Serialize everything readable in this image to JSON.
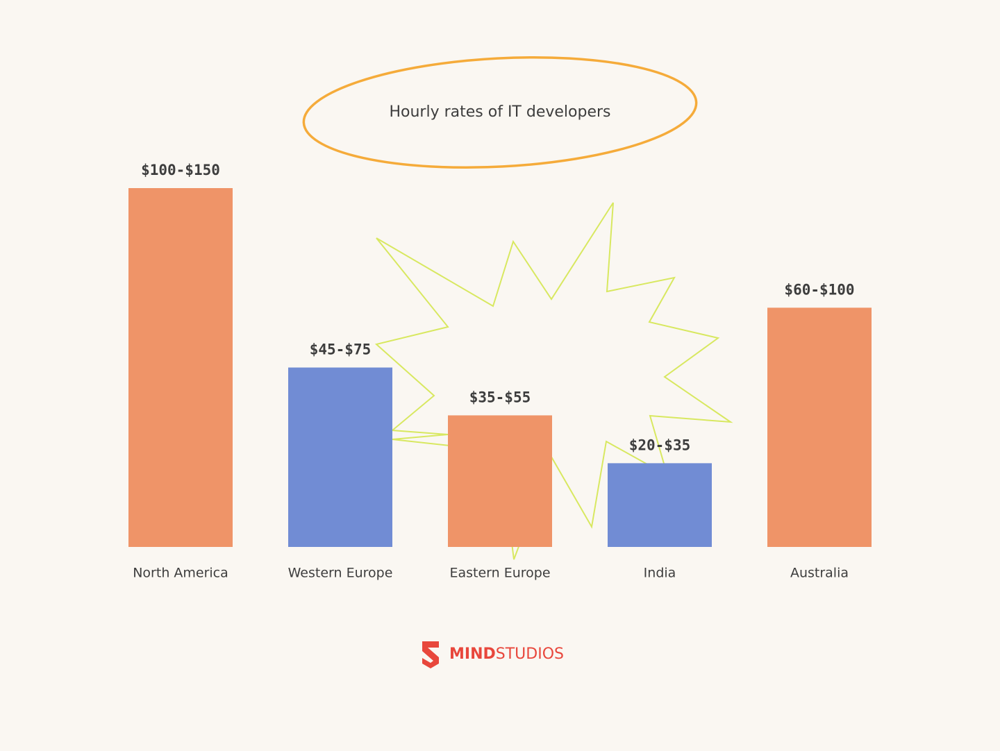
{
  "chart_data": {
    "type": "range_bar",
    "title": "Hourly rates of IT developers",
    "categories": [
      "North America",
      "Western Europe",
      "Eastern Europe",
      "India",
      "Australia"
    ],
    "values": [
      [
        100,
        150
      ],
      [
        45,
        75
      ],
      [
        35,
        55
      ],
      [
        20,
        35
      ],
      [
        60,
        100
      ]
    ],
    "value_labels": [
      "$100-$150",
      "$45-$75",
      "$35-$55",
      "$20-$35",
      "$60-$100"
    ],
    "colors": [
      "#ef9468",
      "#718cd4",
      "#ef9468",
      "#718cd4",
      "#ef9468"
    ]
  },
  "logo_text": [
    "MIND",
    "STUDIOS"
  ]
}
